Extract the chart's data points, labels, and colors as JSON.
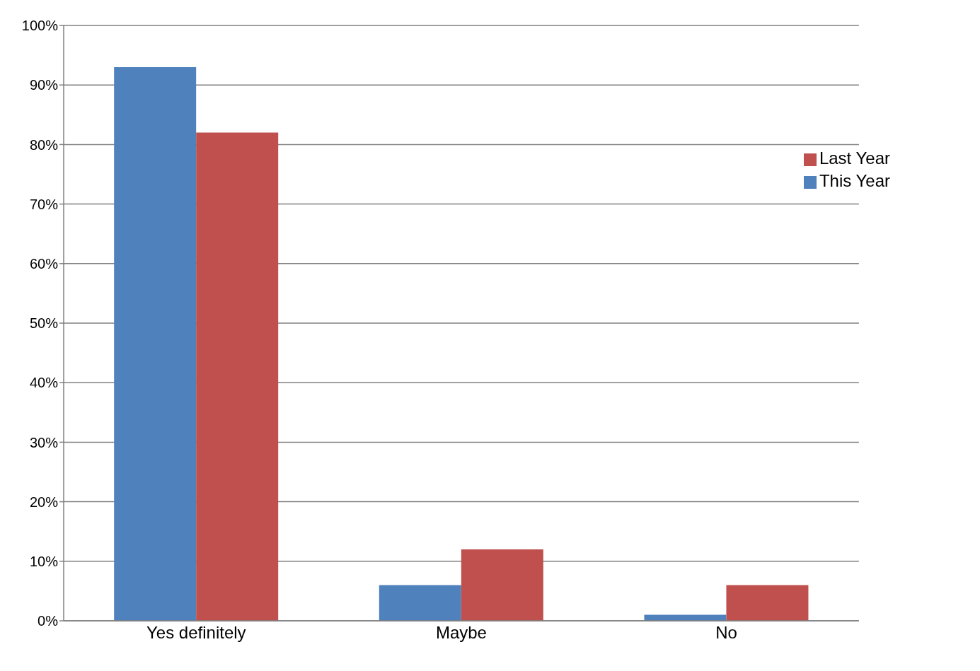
{
  "chart_data": {
    "type": "bar",
    "categories": [
      "Yes definitely",
      "Maybe",
      "No"
    ],
    "series": [
      {
        "name": "This Year",
        "color": "#4f81bd",
        "values": [
          93,
          6,
          1
        ]
      },
      {
        "name": "Last Year",
        "color": "#c0504d",
        "values": [
          82,
          12,
          6
        ]
      }
    ],
    "ylim": [
      0,
      100
    ],
    "yticks": [
      {
        "value": 0,
        "label": "0%"
      },
      {
        "value": 10,
        "label": "10%"
      },
      {
        "value": 20,
        "label": "20%"
      },
      {
        "value": 30,
        "label": "30%"
      },
      {
        "value": 40,
        "label": "40%"
      },
      {
        "value": 50,
        "label": "50%"
      },
      {
        "value": 60,
        "label": "60%"
      },
      {
        "value": 70,
        "label": "70%"
      },
      {
        "value": 80,
        "label": "80%"
      },
      {
        "value": 90,
        "label": "90%"
      },
      {
        "value": 100,
        "label": "100%"
      }
    ],
    "grid": "y",
    "legend": "top right"
  }
}
